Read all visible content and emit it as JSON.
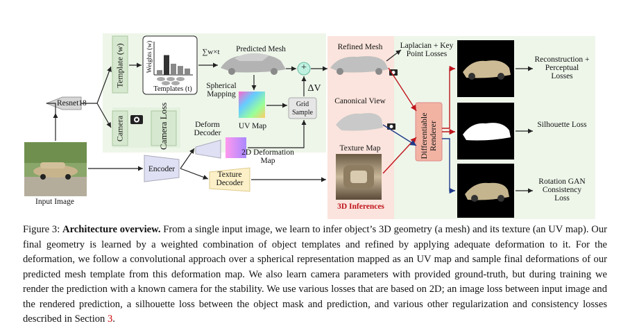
{
  "figure": {
    "input_image_label": "Input Image",
    "resnet_label": "Resnet18",
    "template_label": "Template (w)",
    "camera_label": "Camera",
    "camera_loss_label": "Camera Loss",
    "weights_axis_label": "Weights (w)",
    "templates_axis_label": "Templates (t)",
    "weights_chart": [
      0.15,
      0.62,
      0.35,
      0.28,
      0.2
    ],
    "sum_label": "∑w×t",
    "predicted_mesh_label": "Predicted Mesh",
    "spherical_mapping_label": "Spherical Mapping",
    "uv_map_label": "UV Map",
    "grid_sample_label": "Grid Sample",
    "delta_v_label": "ΔV",
    "plus_label": "+",
    "deform_decoder_label": "Deform Decoder",
    "deformation_map_label": "2D Deformation Map",
    "encoder_label": "Encoder",
    "texture_decoder_label": "Texture Decoder",
    "refined_mesh_label": "Refined Mesh",
    "canonical_view_label": "Canonical View",
    "texture_map_label": "Texture Map",
    "inferences_label": "3D Inferences",
    "laplacian_label": "Laplacian + Key Point Losses",
    "renderer_label": "Differentiable Renderer",
    "reconstruction_label": "Reconstruction + Perceptual Losses",
    "silhouette_label": "Silhouette Loss",
    "rotation_label": "Rotation GAN Consistency Loss",
    "colors": {
      "green_panel": "#eef6ea",
      "pink_panel": "#fbe4dd",
      "yellow_box": "#fcf0c8",
      "purple_box": "#dfe0f3",
      "red_arrow": "#c0141b",
      "blue_arrow": "#1f3a8a"
    }
  },
  "caption": {
    "prefix": "Figure 3: ",
    "bold": "Architecture overview.",
    "text": " From a single input image, we learn to infer object’s 3D geometry (a mesh) and its texture (an UV map). Our final geometry is learned by a weighted combination of object templates and refined by applying adequate deformation to it. For the deformation, we follow a convolutional approach over a spherical representation mapped as an UV map and sample final deformations of our predicted mesh template from this deformation map. We also learn camera parameters with provided ground-truth, but during training we render the prediction with a known camera for the stability. We use various losses that are based on 2D; an image loss between input image and the rendered prediction, a silhouette loss between the object mask and prediction, and various other regularization and consistency losses described in Section ",
    "section_ref": "3",
    "end": "."
  }
}
